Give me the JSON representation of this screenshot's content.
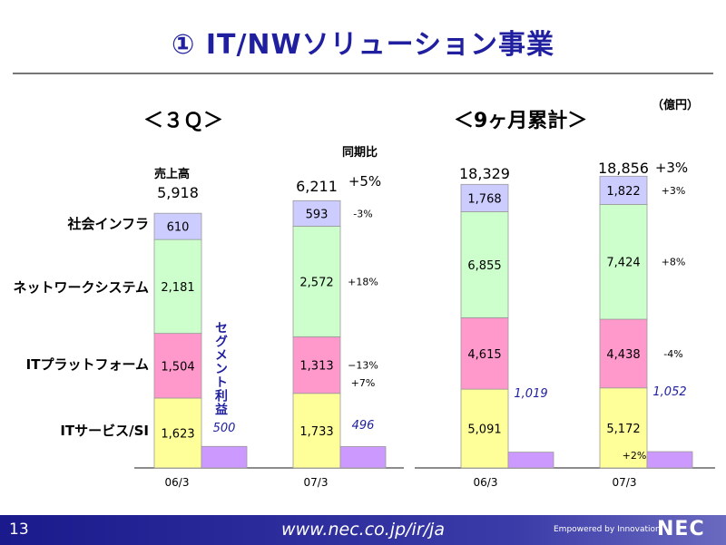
{
  "title": "① IT/NWソリューション事業",
  "unit": "（億円）",
  "sections": {
    "q3": "＜３Ｑ＞",
    "cumulative": "＜9ヶ月累計＞"
  },
  "labels": {
    "sales": "売上高",
    "yoy": "同期比",
    "segment_profit": "セグメント利益"
  },
  "categories": [
    "社会インフラ",
    "ネットワークシステム",
    "ITプラットフォーム",
    "ITサービス/SI"
  ],
  "colors": {
    "social": "#ccccff",
    "network": "#ccffcc",
    "platform": "#ff99cc",
    "service": "#ffff99",
    "profit": "#cc99ff",
    "profit_label": "#1f1fa0"
  },
  "chart_data": [
    {
      "type": "bar",
      "stacked": true,
      "title": "＜３Ｑ＞",
      "categories": [
        "06/3",
        "07/3"
      ],
      "series": [
        {
          "name": "ITサービス/SI",
          "values": [
            1623,
            1733
          ]
        },
        {
          "name": "ITプラットフォーム",
          "values": [
            1504,
            1313
          ]
        },
        {
          "name": "ネットワークシステム",
          "values": [
            2181,
            2572
          ]
        },
        {
          "name": "社会インフラ",
          "values": [
            610,
            593
          ]
        }
      ],
      "value_labels": {
        "ITサービス/SI": [
          "1,623",
          "1,733"
        ],
        "ITプラットフォーム": [
          "1,504",
          "1,313"
        ],
        "ネットワークシステム": [
          "2,181",
          "2,572"
        ],
        "社会インフラ": [
          "610",
          "593"
        ]
      },
      "totals": [
        5918,
        6211
      ],
      "total_labels": [
        "5,918",
        "6,211"
      ],
      "yoy_total": "+5%",
      "yoy_segments": [
        "+7%",
        "−13%",
        "+18%",
        "-3%"
      ],
      "segment_profit": [
        500,
        496
      ],
      "segment_profit_labels": [
        "500",
        "496"
      ]
    },
    {
      "type": "bar",
      "stacked": true,
      "title": "＜9ヶ月累計＞",
      "categories": [
        "06/3",
        "07/3"
      ],
      "series": [
        {
          "name": "ITサービス/SI",
          "values": [
            5091,
            5172
          ]
        },
        {
          "name": "ITプラットフォーム",
          "values": [
            4615,
            4438
          ]
        },
        {
          "name": "ネットワークシステム",
          "values": [
            6855,
            7424
          ]
        },
        {
          "name": "社会インフラ",
          "values": [
            1768,
            1822
          ]
        }
      ],
      "value_labels": {
        "ITサービス/SI": [
          "5,091",
          "5,172"
        ],
        "ITプラットフォーム": [
          "4,615",
          "4,438"
        ],
        "ネットワークシステム": [
          "6,855",
          "7,424"
        ],
        "社会インフラ": [
          "1,768",
          "1,822"
        ]
      },
      "totals": [
        18329,
        18856
      ],
      "total_labels": [
        "18,329",
        "18,856"
      ],
      "yoy_total": "+3%",
      "yoy_segments": [
        "+2%",
        "-4%",
        "+8%",
        "+3%"
      ],
      "segment_profit": [
        1019,
        1052
      ],
      "segment_profit_labels": [
        "1,019",
        "1,052"
      ]
    }
  ],
  "footer": {
    "page_number": "13",
    "url": "www.nec.co.jp/ir/ja",
    "tagline": "Empowered by Innovation",
    "logo": "NEC"
  }
}
